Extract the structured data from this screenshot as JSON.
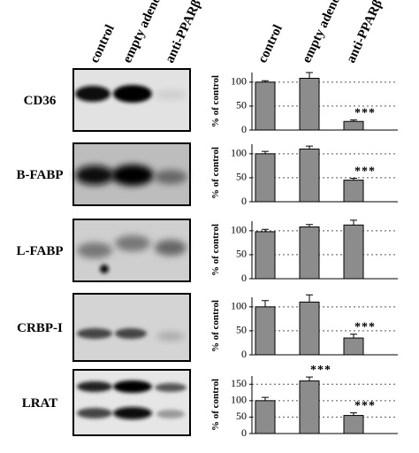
{
  "blot_lanes": [
    "control",
    "empty adeno",
    "anti-PPARβ"
  ],
  "chart_categories": [
    "control",
    "empty adeno",
    "anti-PPARβ"
  ],
  "chart_data": [
    {
      "type": "bar",
      "title": "CD36",
      "ylabel": "% of control",
      "values": [
        100,
        108,
        18
      ],
      "errors": [
        3,
        12,
        3
      ],
      "annotations": [
        null,
        null,
        "***"
      ],
      "ylim": [
        0,
        120
      ],
      "yticks": [
        0,
        50,
        100
      ],
      "color": "#8c8c8c",
      "grid": true
    },
    {
      "type": "bar",
      "title": "B-FABP",
      "ylabel": "% of control",
      "values": [
        100,
        110,
        45
      ],
      "errors": [
        5,
        6,
        4
      ],
      "annotations": [
        null,
        null,
        "***"
      ],
      "ylim": [
        0,
        120
      ],
      "yticks": [
        0,
        50,
        100
      ],
      "color": "#8c8c8c",
      "grid": true
    },
    {
      "type": "bar",
      "title": "L-FABP",
      "ylabel": "% of control",
      "values": [
        98,
        108,
        112
      ],
      "errors": [
        5,
        5,
        10
      ],
      "annotations": [
        null,
        null,
        null
      ],
      "ylim": [
        0,
        120
      ],
      "yticks": [
        0,
        50,
        100
      ],
      "color": "#8c8c8c",
      "grid": true
    },
    {
      "type": "bar",
      "title": "CRBP-I",
      "ylabel": "% of control",
      "values": [
        100,
        110,
        35
      ],
      "errors": [
        13,
        15,
        8
      ],
      "annotations": [
        null,
        null,
        "***"
      ],
      "ylim": [
        0,
        120
      ],
      "yticks": [
        0,
        50,
        100
      ],
      "color": "#8c8c8c",
      "grid": true
    },
    {
      "type": "bar",
      "title": "LRAT",
      "ylabel": "% of control",
      "values": [
        100,
        160,
        55
      ],
      "errors": [
        10,
        12,
        8
      ],
      "annotations": [
        null,
        "***",
        "***"
      ],
      "ylim": [
        0,
        175
      ],
      "yticks": [
        0,
        50,
        100,
        150
      ],
      "color": "#8c8c8c",
      "grid": true
    }
  ]
}
